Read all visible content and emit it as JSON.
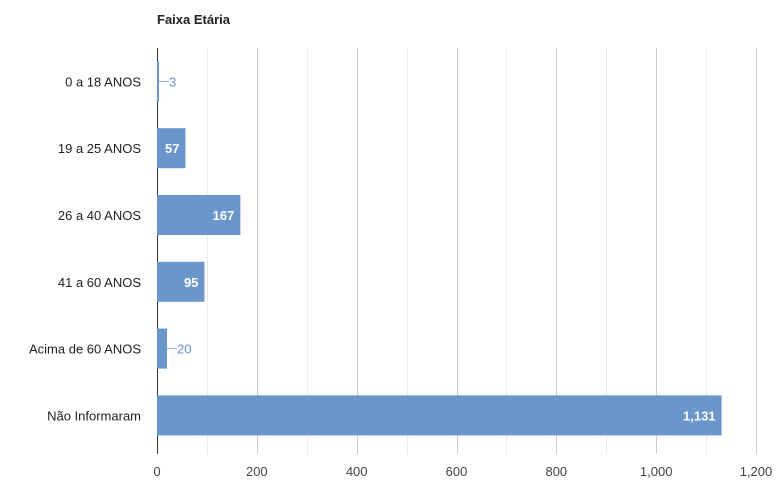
{
  "chart_data": {
    "type": "bar",
    "orientation": "horizontal",
    "title": "Faixa Etária",
    "xlabel": "",
    "ylabel": "",
    "categories": [
      "0 a 18 ANOS",
      "19 a 25 ANOS",
      "26 a 40 ANOS",
      "41 a 60 ANOS",
      "Acima de 60 ANOS",
      "Não Informaram"
    ],
    "values": [
      3,
      57,
      167,
      95,
      20,
      1131
    ],
    "value_labels": [
      "3",
      "57",
      "167",
      "95",
      "20",
      "1,131"
    ],
    "xlim": [
      0,
      1200
    ],
    "ticks": [
      0,
      200,
      400,
      600,
      800,
      1000,
      1200
    ],
    "tick_labels": [
      "0",
      "200",
      "400",
      "600",
      "800",
      "1,000",
      "1,200"
    ],
    "grid": true,
    "legend": "none",
    "bar_color": "#6a96cc",
    "gridline_color": "#cccccc",
    "minor_gridline_color": "#ebebeb"
  }
}
